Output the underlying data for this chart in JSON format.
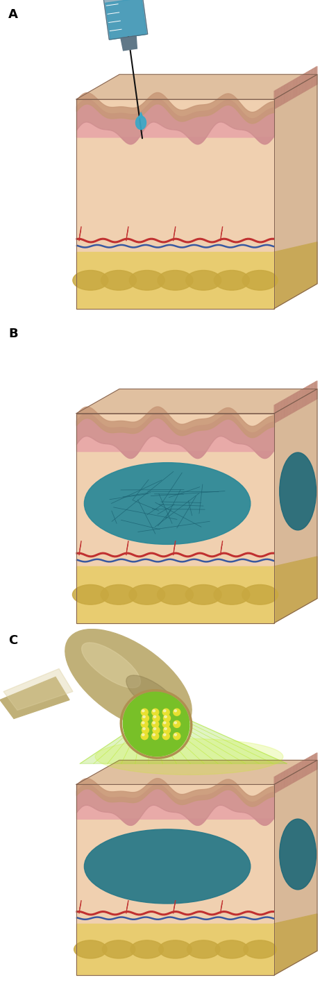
{
  "panel_labels": [
    "A",
    "B",
    "C"
  ],
  "panel_label_fontsize": 13,
  "panel_label_fontweight": "bold",
  "background_color": "#ffffff",
  "sc": {
    "dermis": "#f0d0b0",
    "dermis_right": "#d8b898",
    "dermis_top": "#e0c0a0",
    "epidermis_pink": "#e8a8a8",
    "epidermis_dark": "#d08888",
    "skin_surface": "#c89878",
    "fat_yellow": "#e8cc70",
    "fat_blob": "#c8a840",
    "fat_right": "#c8a858",
    "blood_red": "#c03030",
    "vessel_blue": "#3858a0",
    "hydrogel_teal": "#2a8898",
    "hydrogel_network": "#1a6070",
    "hydrogel_side": "#1e6878",
    "needle_dark": "#1a1a1a",
    "needle_mid": "#444444",
    "syringe_body": "#8aacbe",
    "syringe_liquid": "#3898b8",
    "drop_teal": "#3aa8c8",
    "device_gold": "#c0b078",
    "device_light": "#ddd0a0",
    "device_dark": "#908050",
    "led_green": "#78c028",
    "led_yellow": "#e8e030",
    "beam_green": "#a8e030",
    "outline": "#806050"
  },
  "figure_size": [
    4.74,
    14.15
  ],
  "dpi": 100
}
